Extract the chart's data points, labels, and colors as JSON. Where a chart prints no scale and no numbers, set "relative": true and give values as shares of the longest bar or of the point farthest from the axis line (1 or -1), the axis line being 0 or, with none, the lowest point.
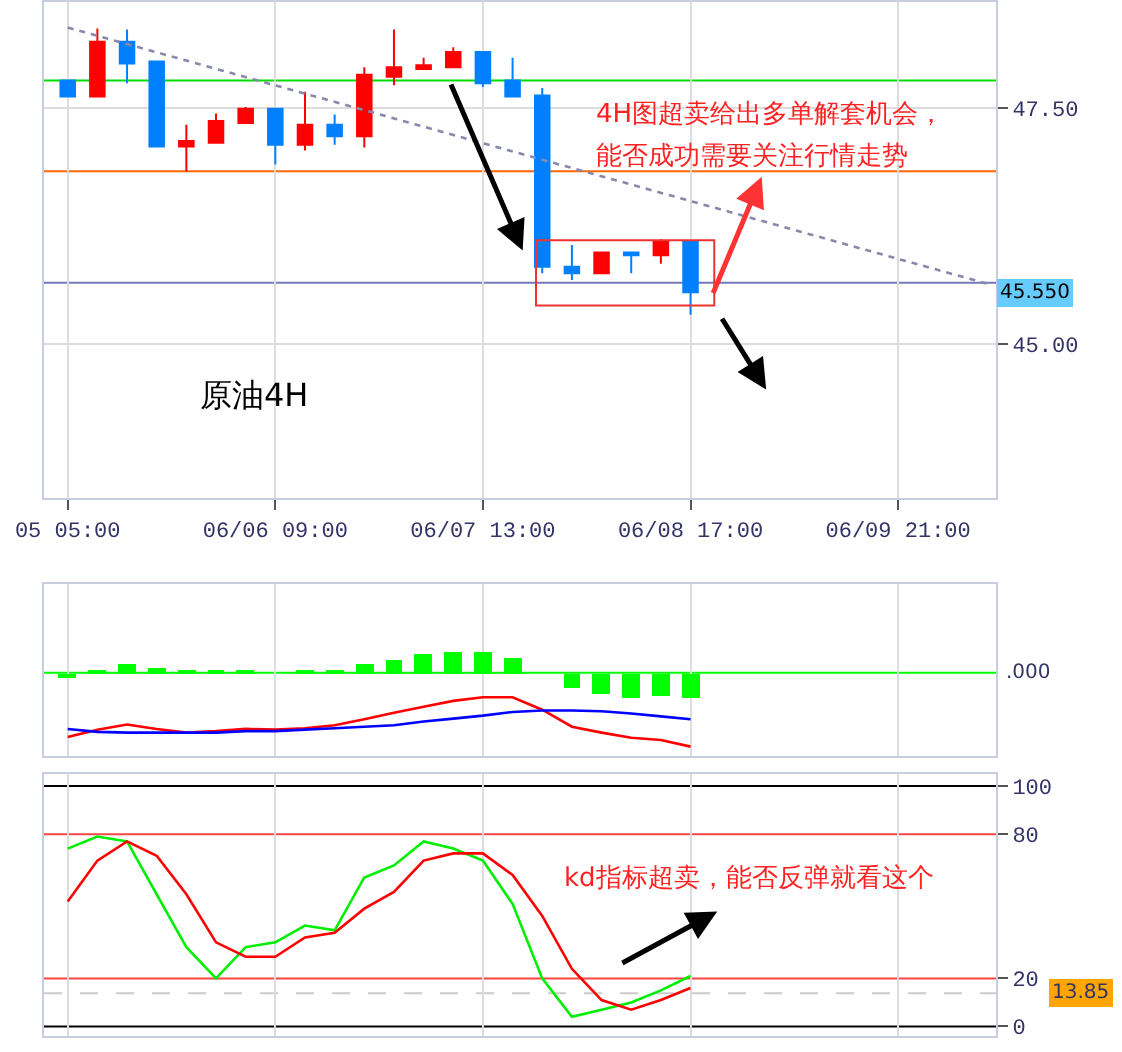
{
  "chart_data": [
    {
      "type": "candlestick",
      "categories": [
        "05 05:00",
        null,
        null,
        null,
        null,
        null,
        null,
        "06/06 09:00",
        null,
        null,
        null,
        null,
        null,
        null,
        "06/07 13:00",
        null,
        null,
        null,
        null,
        null,
        null,
        "06/08 17:00",
        null,
        null,
        null,
        null,
        null,
        null,
        "06/09 21:00",
        null,
        null,
        null
      ],
      "ohlc": [
        [
          47.79,
          47.8,
          47.61,
          47.62
        ],
        [
          47.62,
          48.34,
          47.62,
          48.2
        ],
        [
          48.2,
          48.33,
          47.76,
          47.97
        ],
        [
          47.99,
          47.99,
          47.09,
          47.09
        ],
        [
          47.09,
          47.32,
          46.83,
          47.15
        ],
        [
          47.13,
          47.44,
          47.13,
          47.36
        ],
        [
          47.34,
          47.51,
          47.34,
          47.49
        ],
        [
          47.49,
          47.49,
          46.9,
          47.11
        ],
        [
          47.11,
          47.67,
          47.05,
          47.32
        ],
        [
          47.32,
          47.43,
          47.11,
          47.2
        ],
        [
          47.2,
          47.93,
          47.08,
          47.85
        ],
        [
          47.83,
          48.33,
          47.74,
          47.93
        ],
        [
          47.91,
          48.03,
          47.91,
          47.95
        ],
        [
          47.93,
          48.14,
          47.93,
          48.09
        ],
        [
          48.09,
          48.09,
          47.72,
          47.76
        ],
        [
          47.79,
          48.03,
          47.62,
          47.62
        ],
        [
          47.63,
          47.71,
          45.75,
          45.82
        ],
        [
          45.82,
          46.05,
          45.68,
          45.75
        ],
        [
          45.75,
          45.97,
          45.75,
          45.97
        ],
        [
          45.97,
          45.97,
          45.75,
          45.94
        ],
        [
          45.94,
          46.11,
          45.85,
          46.08
        ],
        [
          46.08,
          46.08,
          45.31,
          45.55
        ],
        null,
        null,
        null,
        null,
        null,
        null,
        null,
        null,
        null,
        null
      ],
      "colors": [
        "#0080ff",
        "#ff0000",
        "#0080ff",
        "#0080ff",
        "#ff0000",
        "#ff0000",
        "#ff0000",
        "#0080ff",
        "#ff0000",
        "#0080ff",
        "#ff0000",
        "#ff0000",
        "#ff0000",
        "#ff0000",
        "#0080ff",
        "#0080ff",
        "#0080ff",
        "#0080ff",
        "#ff0000",
        "#0080ff",
        "#ff0000",
        "#0080ff",
        null,
        null,
        null,
        null,
        null,
        null,
        null,
        null,
        null,
        null
      ],
      "series": [
        {
          "type": "line",
          "values": [
            48.35,
            null,
            null,
            null,
            null,
            null,
            null,
            null,
            null,
            null,
            null,
            null,
            null,
            null,
            null,
            null,
            null,
            null,
            null,
            null,
            null,
            null,
            null,
            null,
            null,
            null,
            null,
            null,
            null,
            null,
            null,
            45.64
          ],
          "color": "#8888aa",
          "line_style": "dotted"
        }
      ],
      "ylim": [
        43.37,
        48.62
      ],
      "yticks": [
        {
          "value": 47.5,
          "label": "47.50"
        },
        {
          "value": 45,
          "label": "45.00"
        }
      ],
      "grid": true,
      "ref_lines": [
        {
          "axis": "y",
          "value": 47.79,
          "color": "#00dd00"
        },
        {
          "axis": "y",
          "value": 46.83,
          "color": "#ff6600"
        },
        {
          "axis": "y",
          "value": 45.65,
          "color": "#7777bb"
        }
      ],
      "annotations": [
        "原油4H",
        "4H图超卖给出多单解套机会，",
        "能否成功需要关注行情走势",
        "45.550"
      ]
    },
    {
      "type": "bar",
      "relative": true,
      "tick_labels": false,
      "grid": "x",
      "categories": [
        null,
        null,
        null,
        null,
        null,
        null,
        null,
        null,
        null,
        null,
        null,
        null,
        null,
        null,
        null,
        null,
        null,
        null,
        null,
        null,
        null,
        null,
        null,
        null,
        null,
        null,
        null,
        null,
        null,
        null,
        null,
        null
      ],
      "series": [
        {
          "type": "bar",
          "color": "#00ff00",
          "values": [
            -0.07,
            0.03,
            0.12,
            0.06,
            0.04,
            0.04,
            0.03,
            null,
            0.03,
            0.03,
            0.12,
            0.19,
            0.25,
            0.28,
            0.28,
            0.21,
            0,
            -0.21,
            -0.29,
            -0.34,
            -0.31,
            -0.34,
            null,
            null,
            null,
            null,
            null,
            null,
            null,
            null,
            null,
            null
          ]
        },
        {
          "type": "line",
          "color": "#ff0000",
          "values": [
            -0.87,
            -0.77,
            -0.7,
            -0.76,
            -0.81,
            -0.79,
            -0.76,
            -0.77,
            -0.75,
            -0.71,
            -0.63,
            -0.54,
            -0.46,
            -0.38,
            -0.33,
            -0.33,
            -0.5,
            -0.73,
            -0.81,
            -0.88,
            -0.91,
            -1,
            null,
            null,
            null,
            null,
            null,
            null,
            null,
            null,
            null,
            null
          ]
        },
        {
          "type": "line",
          "color": "#0000ff",
          "values": [
            -0.76,
            -0.8,
            -0.81,
            -0.81,
            -0.81,
            -0.81,
            -0.79,
            -0.79,
            -0.77,
            -0.75,
            -0.73,
            -0.71,
            -0.66,
            -0.62,
            -0.58,
            -0.53,
            -0.51,
            -0.51,
            -0.52,
            -0.55,
            -0.59,
            -0.63,
            null,
            null,
            null,
            null,
            null,
            null,
            null,
            null,
            null,
            null
          ]
        }
      ],
      "ref_lines": [
        {
          "axis": "y",
          "value": 0,
          "label": ".000",
          "color": "#00ff00"
        }
      ]
    },
    {
      "type": "line",
      "tick_labels": "y",
      "grid": "x",
      "categories": [
        null,
        null,
        null,
        null,
        null,
        null,
        null,
        null,
        null,
        null,
        null,
        null,
        null,
        null,
        null,
        null,
        null,
        null,
        null,
        null,
        null,
        null,
        null,
        null,
        null,
        null,
        null,
        null,
        null,
        null,
        null,
        null
      ],
      "ylim": [
        -4,
        105
      ],
      "yticks": [
        100,
        80,
        20,
        0
      ],
      "series": [
        {
          "color": "#00ee00",
          "values": [
            74,
            79,
            77,
            55,
            33,
            20,
            33,
            35,
            42,
            40,
            62,
            67,
            77,
            74,
            69,
            51,
            20,
            4,
            7,
            10,
            15,
            21,
            null,
            null,
            null,
            null,
            null,
            null,
            null,
            null,
            null,
            null
          ]
        },
        {
          "color": "#ff0000",
          "values": [
            52,
            69,
            77,
            71,
            55,
            35,
            29,
            29,
            37,
            39,
            49,
            56,
            69,
            72,
            72,
            63,
            46,
            24,
            11,
            7,
            11,
            16,
            null,
            null,
            null,
            null,
            null,
            null,
            null,
            null,
            null,
            null
          ]
        }
      ],
      "ref_lines": [
        {
          "axis": "y",
          "value": 100,
          "color": "#000000"
        },
        {
          "axis": "y",
          "value": 80,
          "color": "#ff4444"
        },
        {
          "axis": "y",
          "value": 20,
          "color": "#ff4444"
        },
        {
          "axis": "y",
          "value": 0,
          "color": "#000000"
        },
        {
          "axis": "y",
          "value": 13.85,
          "label": "13.85",
          "color": "#cccccc",
          "line_style": "dashed"
        }
      ],
      "annotations": [
        "kd指标超卖，能否反弹就看这个"
      ]
    }
  ]
}
